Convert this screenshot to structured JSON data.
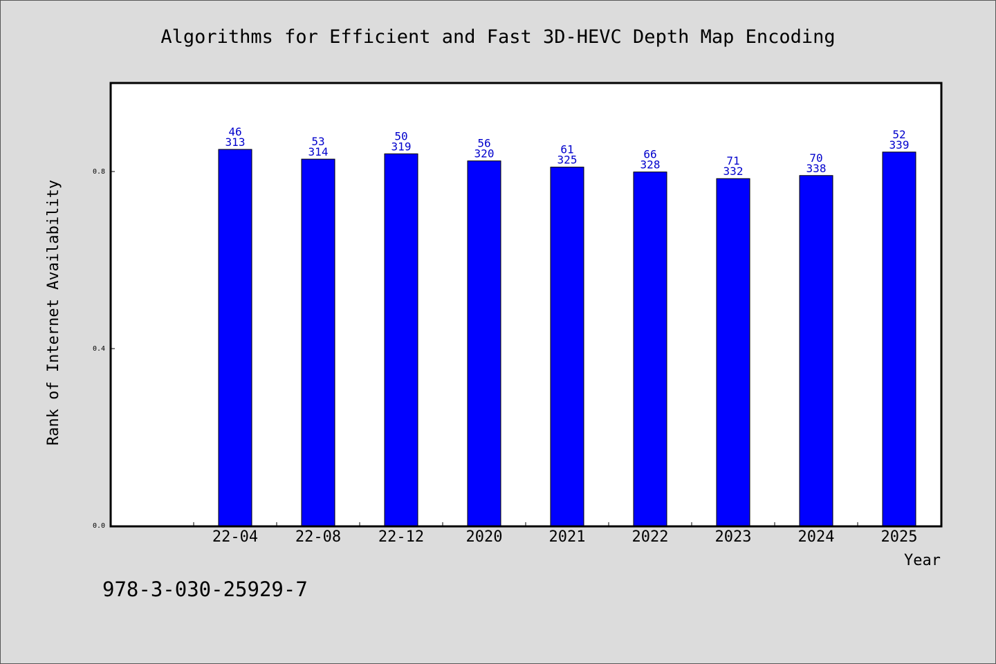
{
  "chart_data": {
    "type": "bar",
    "title": "Algorithms for Efficient and Fast 3D-HEVC Depth Map Encoding",
    "xlabel": "Year",
    "ylabel": "Rank of Internet Availability",
    "categories": [
      "22-04",
      "22-08",
      "22-12",
      "2020",
      "2021",
      "2022",
      "2023",
      "2024",
      "2025"
    ],
    "values": [
      0.85,
      0.828,
      0.84,
      0.824,
      0.81,
      0.799,
      0.784,
      0.791,
      0.844
    ],
    "data_labels_top": [
      "46",
      "53",
      "50",
      "56",
      "61",
      "66",
      "71",
      "70",
      "52"
    ],
    "data_labels_bottom": [
      "313",
      "314",
      "319",
      "320",
      "325",
      "328",
      "332",
      "338",
      "339"
    ],
    "yticks": [
      0.0,
      0.4,
      0.8
    ],
    "ytick_labels": [
      "0.0",
      "0.4",
      "0.8"
    ],
    "ylim": [
      0,
      1.0
    ],
    "grid": false,
    "bar_color": "#0000ff",
    "label_color": "#0000cc",
    "background": "#dcdcdc",
    "plot_background": "#ffffff"
  },
  "footer": {
    "code": "978-3-030-25929-7"
  }
}
